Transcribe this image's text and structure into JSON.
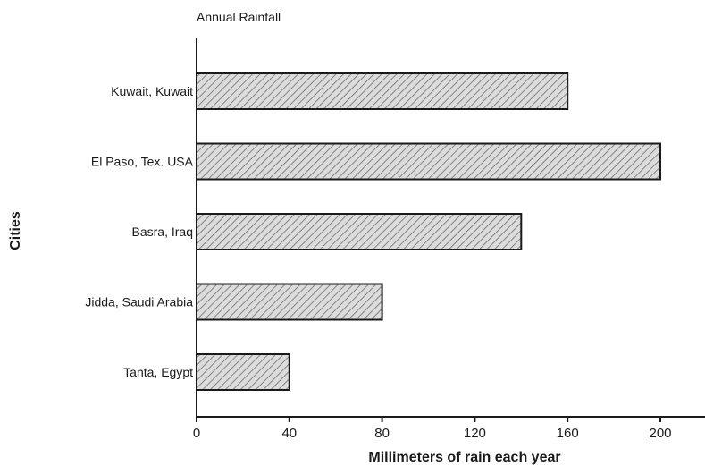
{
  "chart_data": {
    "type": "bar",
    "orientation": "horizontal",
    "title": "Annual Rainfall",
    "xlabel": "Millimeters of rain each year",
    "ylabel": "Cities",
    "categories": [
      "Kuwait, Kuwait",
      "El Paso, Tex. USA",
      "Basra, Iraq",
      "Jidda, Saudi Arabia",
      "Tanta, Egypt"
    ],
    "values": [
      160,
      200,
      140,
      80,
      40
    ],
    "xlim": [
      0,
      200
    ],
    "xticks": [
      0,
      40,
      80,
      120,
      160,
      200
    ],
    "grid": false,
    "bar_fill": "hatched",
    "colors": {
      "bar_fill": "#dcdcdc",
      "hatch": "#6e6e6e",
      "outline": "#1a1a1a"
    }
  }
}
